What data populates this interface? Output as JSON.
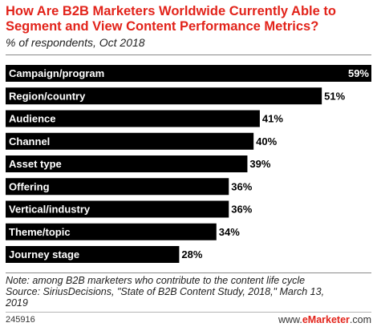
{
  "chart_data": {
    "type": "bar",
    "orientation": "horizontal",
    "title": "How Are B2B Marketers Worldwide Currently Able to Segment and View Content Performance Metrics?",
    "subtitle": "% of respondents, Oct 2018",
    "categories": [
      "Campaign/program",
      "Region/country",
      "Audience",
      "Channel",
      "Asset type",
      "Offering",
      "Vertical/industry",
      "Theme/topic",
      "Journey stage"
    ],
    "values": [
      59,
      51,
      41,
      40,
      39,
      36,
      36,
      34,
      28
    ],
    "value_labels": [
      "59%",
      "51%",
      "41%",
      "40%",
      "39%",
      "36%",
      "36%",
      "34%",
      "28%"
    ],
    "xlim": [
      0,
      59
    ],
    "grid": false,
    "legend": "none",
    "bar_color": "#000000"
  },
  "note_lines": [
    "Note: among B2B marketers who contribute to the content life cycle",
    "Source: SiriusDecisions, \"State of B2B Content Study, 2018,\" March 13,",
    "2019"
  ],
  "footer": {
    "id": "245916",
    "brand_prefix": "www.",
    "brand_name": "eMarketer",
    "brand_suffix": ".com"
  },
  "colors": {
    "title": "#e2231a",
    "bar": "#000000",
    "inside_value": "#ffffff",
    "outside_value": "#000000"
  }
}
